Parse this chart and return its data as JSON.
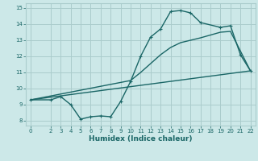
{
  "title": "",
  "xlabel": "Humidex (Indice chaleur)",
  "ylabel": "",
  "bg_color": "#cce8e8",
  "grid_color": "#aacccc",
  "line_color": "#1a6666",
  "xlim": [
    -0.5,
    22.5
  ],
  "ylim": [
    7.7,
    15.3
  ],
  "xticks": [
    0,
    2,
    3,
    4,
    5,
    6,
    7,
    8,
    9,
    10,
    11,
    12,
    13,
    14,
    15,
    16,
    17,
    18,
    19,
    20,
    21,
    22
  ],
  "yticks": [
    8,
    9,
    10,
    11,
    12,
    13,
    14,
    15
  ],
  "line1_x": [
    0,
    2,
    3,
    4,
    5,
    6,
    7,
    8,
    9,
    10,
    11,
    12,
    13,
    14,
    15,
    16,
    17,
    19,
    20,
    21,
    22
  ],
  "line1_y": [
    9.3,
    9.3,
    9.5,
    9.0,
    8.1,
    8.25,
    8.3,
    8.25,
    9.2,
    10.45,
    12.0,
    13.2,
    13.7,
    14.78,
    14.85,
    14.7,
    14.1,
    13.8,
    13.9,
    12.1,
    11.1
  ],
  "line2_x": [
    0,
    22
  ],
  "line2_y": [
    9.3,
    11.1
  ],
  "line3_x": [
    0,
    10,
    11,
    13,
    14,
    15,
    16,
    17,
    19,
    20,
    22
  ],
  "line3_y": [
    9.3,
    10.5,
    11.0,
    12.1,
    12.55,
    12.85,
    13.0,
    13.15,
    13.5,
    13.55,
    11.1
  ]
}
